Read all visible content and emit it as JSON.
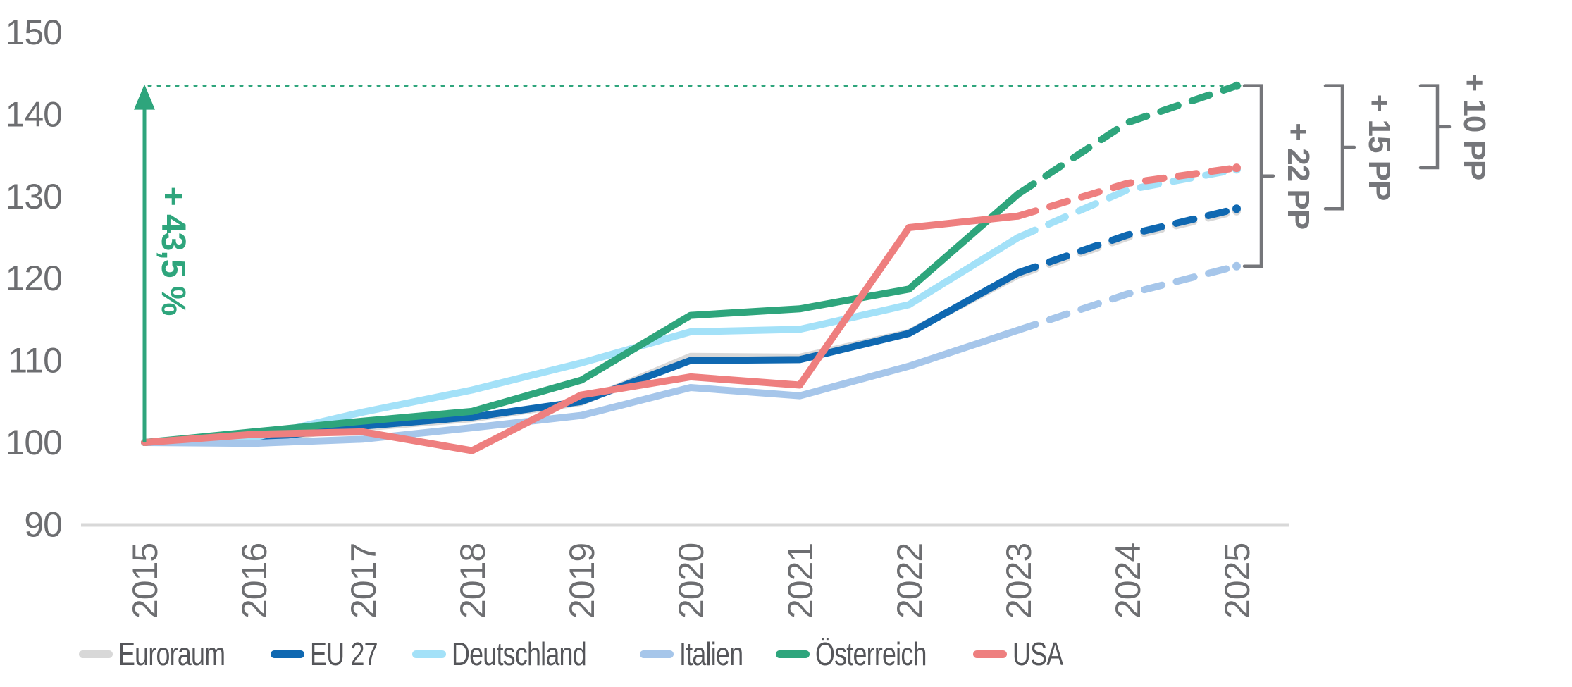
{
  "chart_data": {
    "type": "line",
    "title": "",
    "x_axis": {
      "labels": [
        "2015",
        "2016",
        "2017",
        "2018",
        "2019",
        "2020",
        "2021",
        "2022",
        "2023",
        "2024",
        "2025"
      ],
      "rotation": -90
    },
    "y_axis": {
      "ticks": [
        "150",
        "140",
        "130",
        "120",
        "110",
        "100",
        "90"
      ],
      "range": [
        90,
        150
      ],
      "grid": false
    },
    "forecast_split_year": "2023",
    "series": [
      {
        "name": "Euroraum",
        "color": "#d8d8d8",
        "values": [
          100,
          100.3,
          101.8,
          102.9,
          104.9,
          110.5,
          110.4,
          113.4,
          120.4,
          125.0,
          128.2
        ]
      },
      {
        "name": "EU 27",
        "color": "#0f68b1",
        "values": [
          100,
          100.4,
          102.0,
          103.1,
          105.0,
          110.0,
          110.1,
          113.3,
          120.7,
          125.3,
          128.5
        ]
      },
      {
        "name": "Deutschland",
        "color": "#a3e1f8",
        "values": [
          100,
          100.6,
          103.7,
          106.4,
          109.7,
          113.5,
          113.8,
          116.8,
          125.0,
          130.8,
          133.3
        ]
      },
      {
        "name": "Italien",
        "color": "#a6c6ea",
        "values": [
          100,
          99.9,
          100.4,
          101.8,
          103.3,
          106.7,
          105.7,
          109.3,
          113.7,
          118.1,
          121.5
        ]
      },
      {
        "name": "Österreich",
        "color": "#2ea57c",
        "values": [
          100,
          101.3,
          102.6,
          103.8,
          107.6,
          115.5,
          116.3,
          118.7,
          130.3,
          139.0,
          143.5
        ]
      },
      {
        "name": "USA",
        "color": "#ee7f7f",
        "values": [
          100,
          101.0,
          101.3,
          99.0,
          105.8,
          108.0,
          107.0,
          126.2,
          127.6,
          131.6,
          133.5
        ]
      }
    ],
    "legend_position": "bottom",
    "annotations": {
      "growth_arrow": {
        "label": "+ 43,5 %",
        "color": "#2ea57c",
        "at_label": "2015",
        "from_value": 100,
        "to_value": 143.5
      },
      "reference_line": {
        "value": 143.5,
        "style": "dotted",
        "color": "#2ea57c"
      },
      "brackets": [
        {
          "label": "+ 22 PP",
          "top_value": 143.5,
          "bottom_value": 121.5
        },
        {
          "label": "+ 15 PP",
          "top_value": 143.5,
          "bottom_value": 128.5
        },
        {
          "label": "+ 10 PP",
          "top_value": 143.5,
          "bottom_value": 133.5
        }
      ],
      "annotation_color": "#75767a"
    }
  }
}
